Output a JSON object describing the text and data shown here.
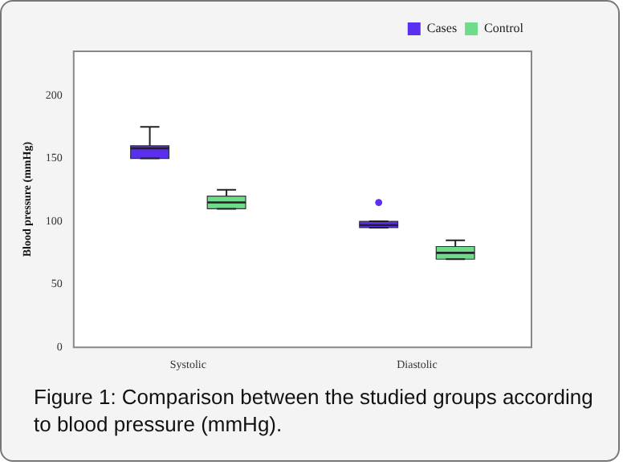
{
  "chart_data": {
    "type": "box",
    "ylabel": "Blood pressure (mmHg)",
    "categories": [
      "Systolic",
      "Diastolic"
    ],
    "series": [
      {
        "name": "Cases",
        "color": "#5a2ff0",
        "boxes": [
          {
            "low": 150,
            "q1": 150,
            "median": 158,
            "q3": 160,
            "high": 175
          },
          {
            "low": 95,
            "q1": 95,
            "median": 97,
            "q3": 100,
            "high": 100,
            "outliers": [
              115
            ]
          }
        ]
      },
      {
        "name": "Control",
        "color": "#6edc8a",
        "boxes": [
          {
            "low": 110,
            "q1": 110,
            "median": 115,
            "q3": 120,
            "high": 125
          },
          {
            "low": 70,
            "q1": 70,
            "median": 75,
            "q3": 80,
            "high": 85
          }
        ]
      }
    ],
    "ylim": [
      0,
      235
    ],
    "yticks": [
      0,
      50,
      100,
      150,
      200
    ],
    "grid": false,
    "legend": "top right",
    "annotations": [
      "Figure 1: Comparison between the studied groups according to blood pressure (mmHg)."
    ]
  }
}
